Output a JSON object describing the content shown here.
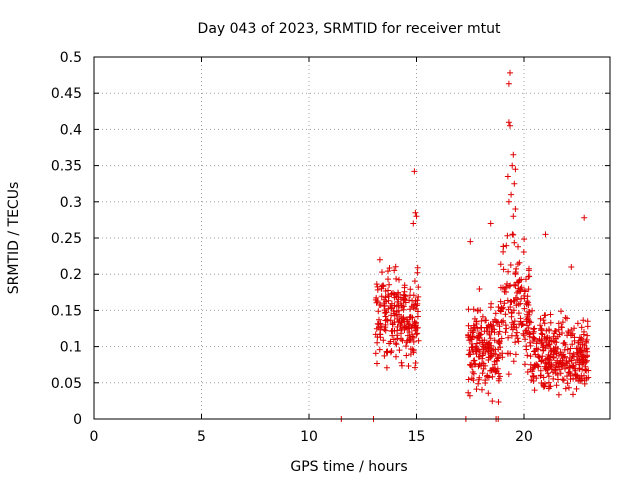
{
  "chart_data": {
    "type": "scatter",
    "title": "Day 043 of 2023, SRMTID for receiver mtut",
    "xlabel": "GPS time / hours",
    "ylabel": "SRMTID / TECUs",
    "xlim": [
      0,
      24
    ],
    "ylim": [
      0,
      0.5
    ],
    "xticks": [
      0,
      5,
      10,
      15,
      20
    ],
    "yticks": [
      0,
      0.05,
      0.1,
      0.15,
      0.2,
      0.25,
      0.3,
      0.35,
      0.4,
      0.45,
      0.5
    ],
    "ytick_labels": [
      "0",
      "0.05",
      "0.1",
      "0.15",
      "0.2",
      "0.25",
      "0.3",
      "0.35",
      "0.4",
      "0.45",
      "0.5"
    ],
    "grid": true,
    "marker": "+",
    "color": "#e00000",
    "zero_points_x": [
      11.5,
      13.0,
      17.3,
      18.7,
      18.8
    ],
    "clusters": [
      {
        "x_range": [
          13.1,
          15.1
        ],
        "y_median": 0.14,
        "y_spread": 0.05,
        "count": 230
      },
      {
        "x_range": [
          17.4,
          18.9
        ],
        "y_median": 0.1,
        "y_spread": 0.05,
        "count": 200
      },
      {
        "x_range": [
          18.9,
          20.3
        ],
        "y_median": 0.15,
        "y_spread": 0.07,
        "count": 150
      },
      {
        "x_range": [
          20.3,
          23.0
        ],
        "y_median": 0.09,
        "y_spread": 0.04,
        "count": 320
      }
    ],
    "highlight_points": [
      {
        "x": 14.9,
        "y": 0.342
      },
      {
        "x": 14.95,
        "y": 0.285
      },
      {
        "x": 15.0,
        "y": 0.28
      },
      {
        "x": 14.85,
        "y": 0.27
      },
      {
        "x": 19.35,
        "y": 0.478
      },
      {
        "x": 19.3,
        "y": 0.463
      },
      {
        "x": 19.3,
        "y": 0.41
      },
      {
        "x": 19.35,
        "y": 0.405
      },
      {
        "x": 19.5,
        "y": 0.365
      },
      {
        "x": 19.45,
        "y": 0.35
      },
      {
        "x": 19.6,
        "y": 0.345
      },
      {
        "x": 19.25,
        "y": 0.335
      },
      {
        "x": 19.55,
        "y": 0.325
      },
      {
        "x": 19.4,
        "y": 0.31
      },
      {
        "x": 19.6,
        "y": 0.29
      },
      {
        "x": 19.5,
        "y": 0.28
      },
      {
        "x": 19.3,
        "y": 0.3
      },
      {
        "x": 22.8,
        "y": 0.278
      },
      {
        "x": 21.0,
        "y": 0.255
      },
      {
        "x": 22.2,
        "y": 0.21
      },
      {
        "x": 18.45,
        "y": 0.27
      },
      {
        "x": 17.5,
        "y": 0.245
      },
      {
        "x": 13.3,
        "y": 0.22
      }
    ]
  }
}
